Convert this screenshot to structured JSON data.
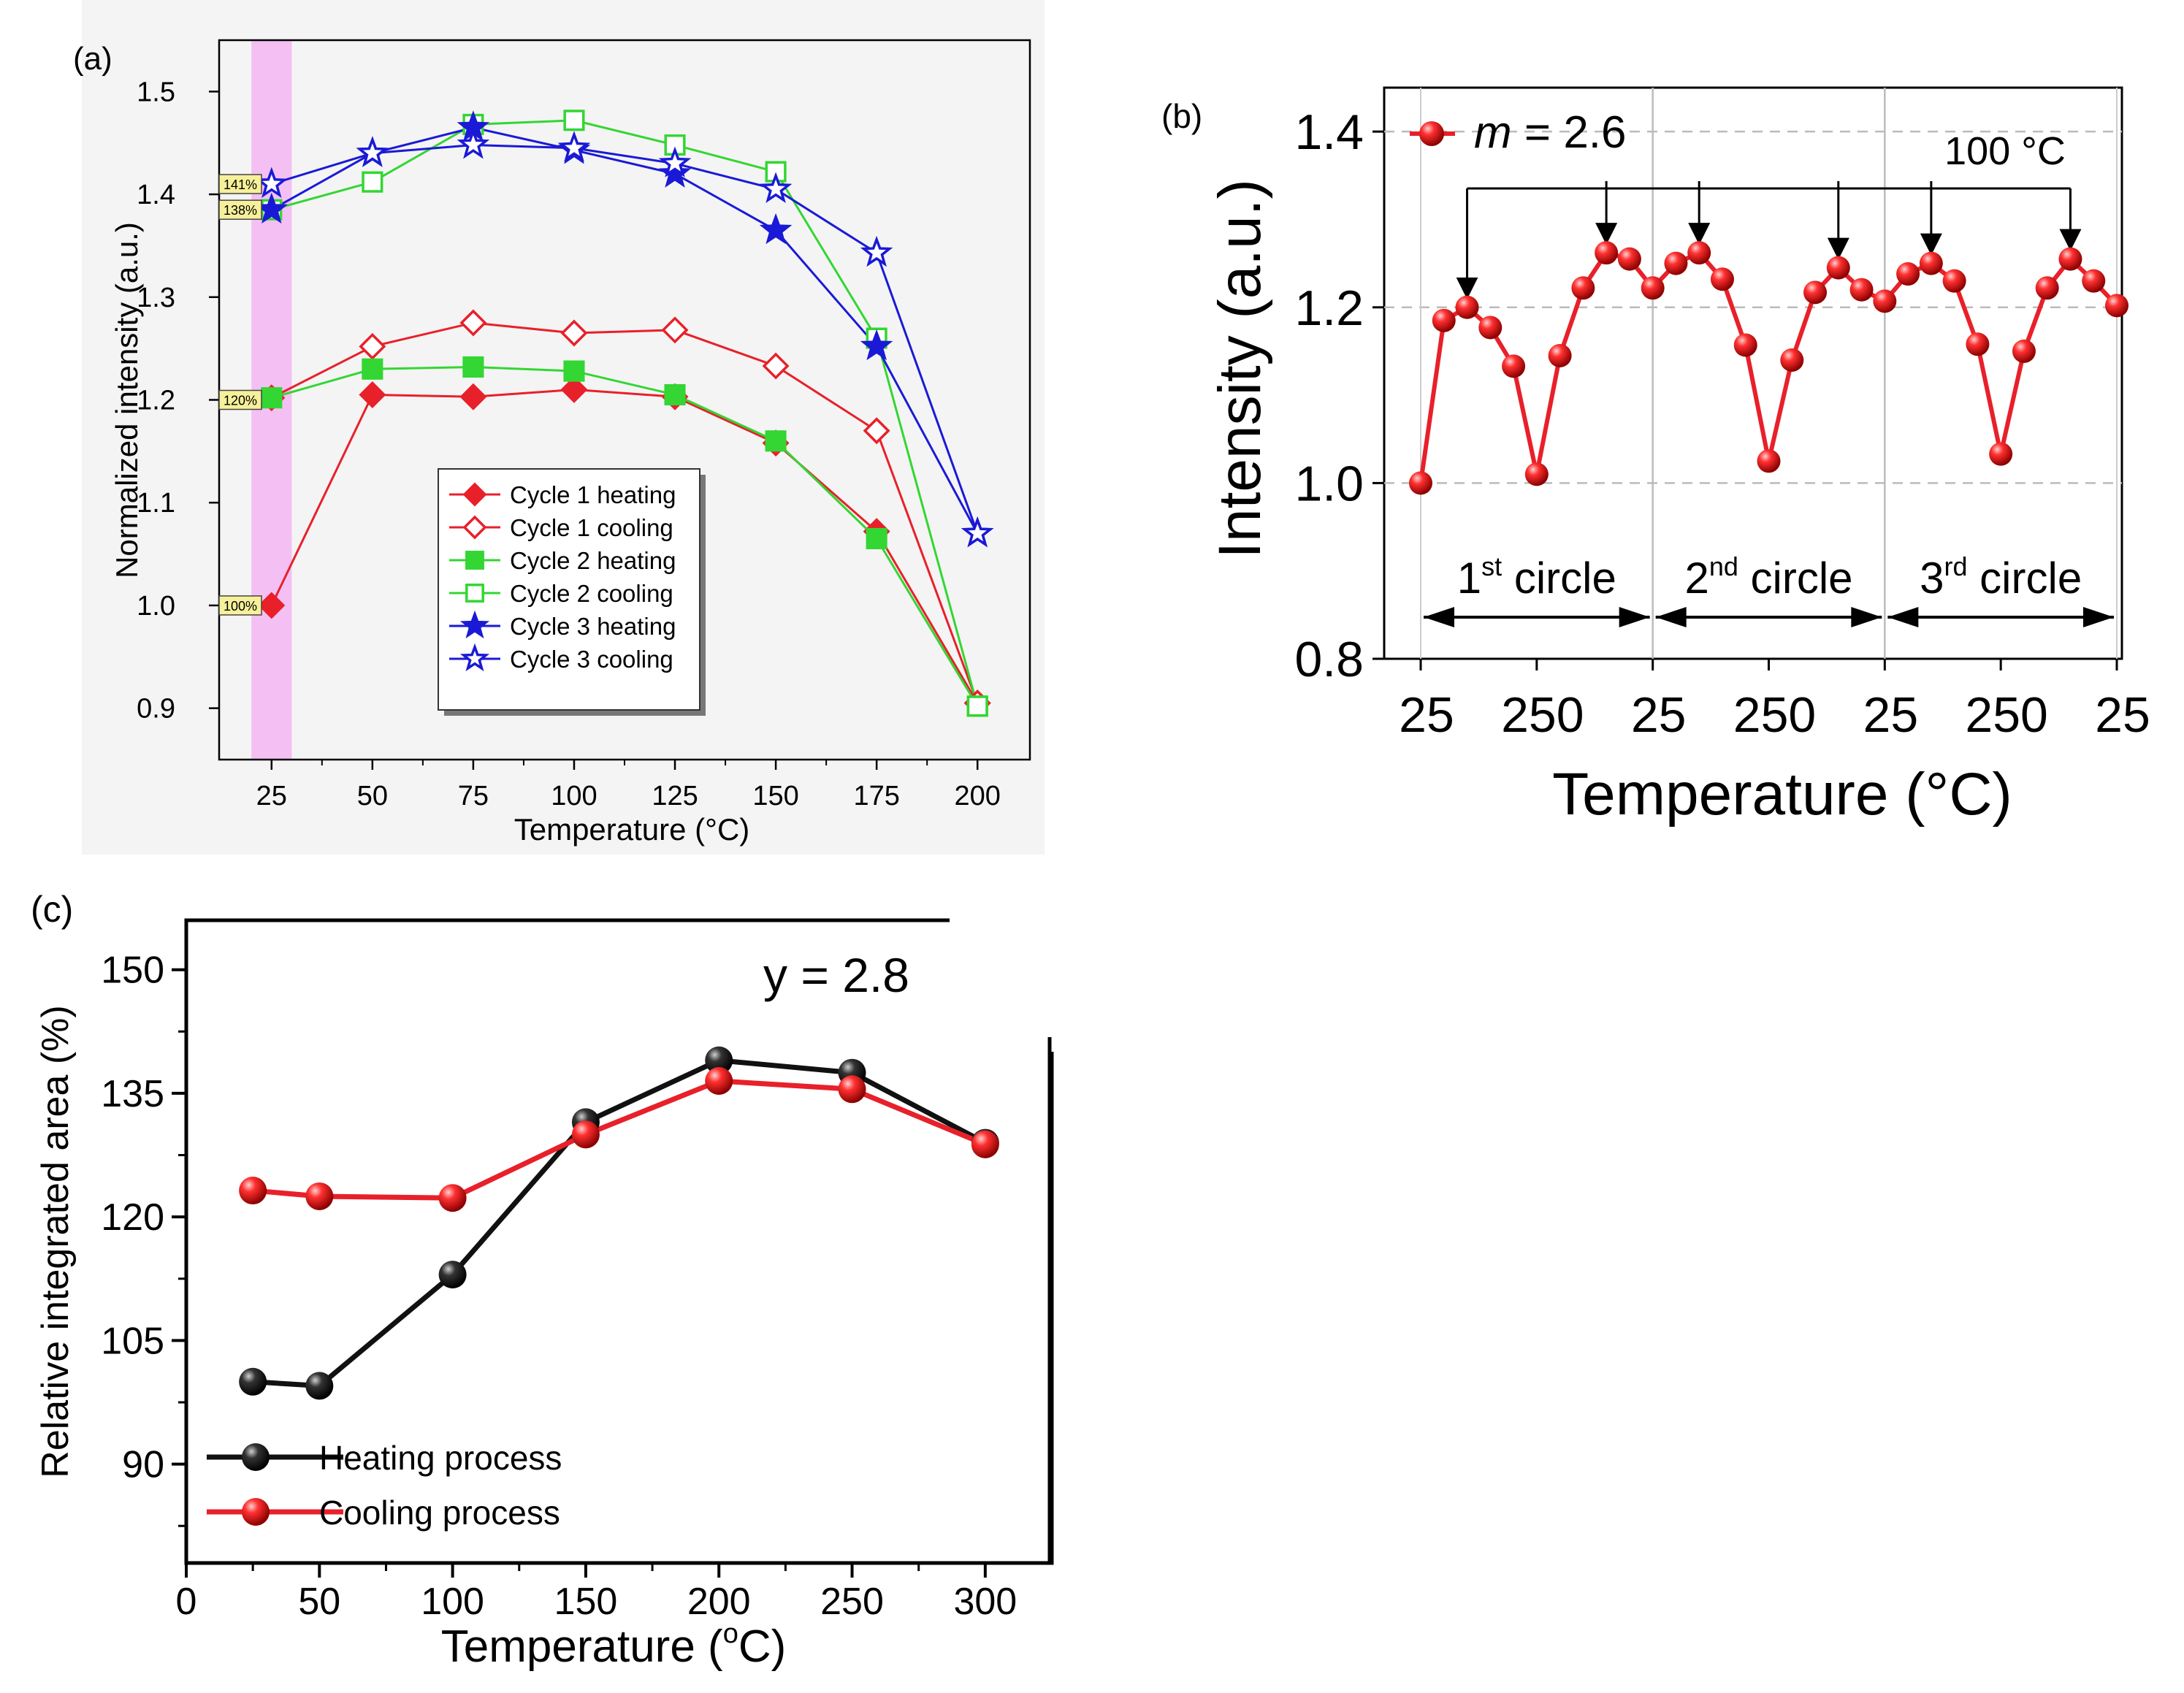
{
  "chart_data": [
    {
      "panel": "(a)",
      "type": "line",
      "xlabel": "Temperature (°C)",
      "ylabel": "Normalized intensity (a.u.)",
      "x": [
        25,
        50,
        75,
        100,
        125,
        150,
        175,
        200
      ],
      "xticks": [
        "25",
        "50",
        "75",
        "100",
        "125",
        "150",
        "175",
        "200"
      ],
      "yticks": [
        "0.9",
        "1.0",
        "1.1",
        "1.2",
        "1.3",
        "1.4",
        "1.5"
      ],
      "xlim": [
        12,
        213
      ],
      "ylim": [
        0.85,
        1.55
      ],
      "highlight_band": [
        20,
        30
      ],
      "highlight_color": "#f4c0f4",
      "tags": [
        {
          "label": "141%",
          "y": 1.41
        },
        {
          "label": "138%",
          "y": 1.385
        },
        {
          "label": "120%",
          "y": 1.2
        },
        {
          "label": "100%",
          "y": 1.0
        }
      ],
      "legend": "center-bottom",
      "series": [
        {
          "name": "Cycle 1 heating",
          "color": "#e8202a",
          "marker": "diamond",
          "filled": true,
          "values": [
            1.0,
            1.205,
            1.203,
            1.21,
            1.203,
            1.158,
            1.072,
            0.905
          ]
        },
        {
          "name": "Cycle 1 cooling",
          "color": "#e8202a",
          "marker": "diamond",
          "filled": false,
          "values": [
            1.202,
            1.252,
            1.275,
            1.265,
            1.268,
            1.233,
            1.17,
            0.905
          ]
        },
        {
          "name": "Cycle 2 heating",
          "color": "#33d633",
          "marker": "square",
          "filled": true,
          "values": [
            1.202,
            1.23,
            1.232,
            1.228,
            1.205,
            1.16,
            1.065,
            0.902
          ]
        },
        {
          "name": "Cycle 2 cooling",
          "color": "#33d633",
          "marker": "square",
          "filled": false,
          "values": [
            1.385,
            1.412,
            1.468,
            1.472,
            1.448,
            1.422,
            1.26,
            0.902
          ]
        },
        {
          "name": "Cycle 3 heating",
          "color": "#1a1ad6",
          "marker": "star",
          "filled": true,
          "values": [
            1.385,
            1.44,
            1.465,
            1.443,
            1.42,
            1.365,
            1.252,
            1.07
          ]
        },
        {
          "name": "Cycle 3 cooling",
          "color": "#1a1ad6",
          "marker": "star",
          "filled": false,
          "values": [
            1.41,
            1.44,
            1.448,
            1.445,
            1.43,
            1.405,
            1.343,
            1.07
          ]
        }
      ]
    },
    {
      "panel": "(b)",
      "type": "line",
      "xlabel": "Temperature (°C)",
      "ylabel": "Intensity (a.u.)",
      "xticks": [
        "25",
        "250",
        "25",
        "250",
        "25",
        "250",
        "25"
      ],
      "yticks": [
        "0.8",
        "1.0",
        "1.2",
        "1.4"
      ],
      "ylim": [
        0.8,
        1.45
      ],
      "color": "#e8202a",
      "legend_label": "m = 2.6",
      "legend_var": "m",
      "legend_value": " = 2.6",
      "annotation": "100 °C",
      "cycles": [
        {
          "label": "1",
          "sup": "st",
          "suffix": " circle"
        },
        {
          "label": "2",
          "sup": "nd",
          "suffix": " circle"
        },
        {
          "label": "3",
          "sup": "rd",
          "suffix": " circle"
        }
      ],
      "values": [
        1.0,
        1.185,
        1.2,
        1.177,
        1.133,
        1.01,
        1.145,
        1.222,
        1.262,
        1.255,
        1.222,
        1.25,
        1.262,
        1.232,
        1.157,
        1.025,
        1.14,
        1.217,
        1.245,
        1.22,
        1.207,
        1.238,
        1.25,
        1.23,
        1.158,
        1.033,
        1.15,
        1.222,
        1.255,
        1.23,
        1.202
      ]
    },
    {
      "panel": "(c)",
      "type": "line",
      "xlabel_main": "Temperature (",
      "xlabel_sup": "o",
      "xlabel_end": "C)",
      "ylabel": "Relative integrated area (%)",
      "xticks": [
        "0",
        "50",
        "100",
        "150",
        "200",
        "250",
        "300"
      ],
      "yticks": [
        "90",
        "105",
        "120",
        "135",
        "150"
      ],
      "xlim": [
        0,
        325
      ],
      "ylim": [
        78,
        156
      ],
      "annotation": "y = 2.8",
      "legend": "bottom-left",
      "x": [
        25,
        50,
        100,
        150,
        200,
        250,
        300
      ],
      "series": [
        {
          "name": "Heating process",
          "color": "#111111",
          "values": [
            100,
            99.5,
            113,
            131.5,
            139,
            137.5,
            129
          ]
        },
        {
          "name": "Cooling process",
          "color": "#e8202a",
          "values": [
            123.2,
            122.5,
            122.3,
            130,
            136.5,
            135.5,
            128.8
          ]
        }
      ]
    }
  ]
}
